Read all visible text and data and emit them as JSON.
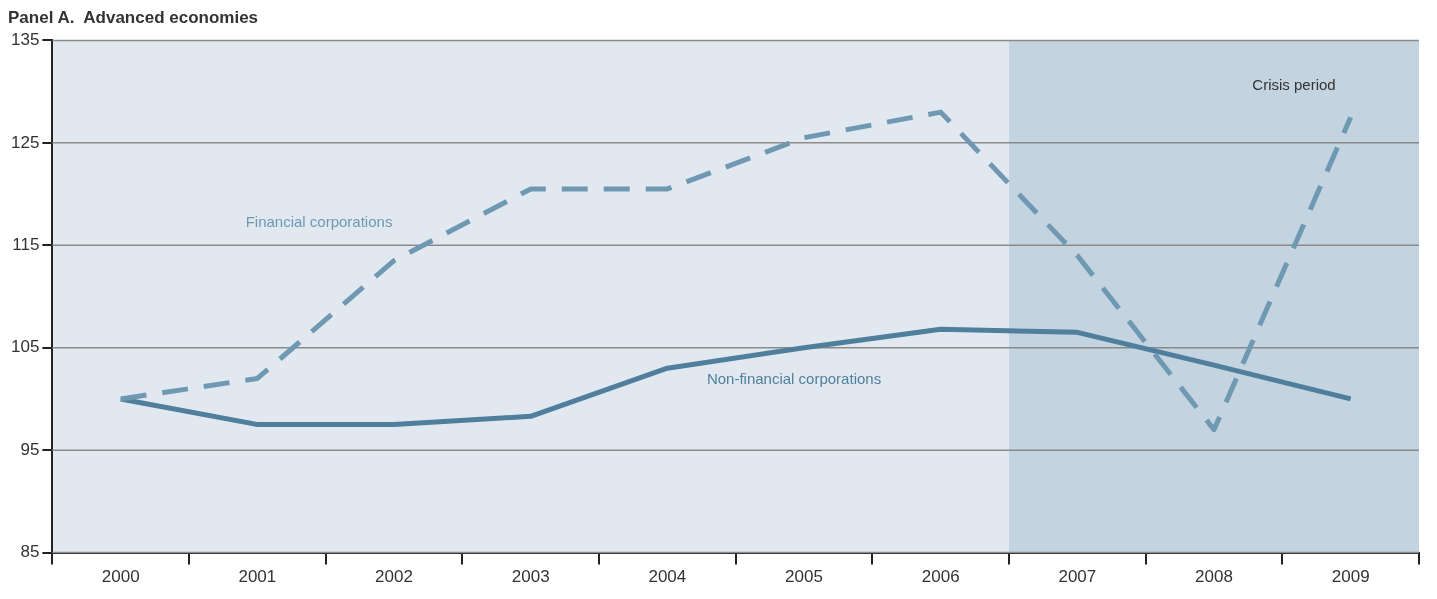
{
  "chart_data": {
    "type": "line",
    "title": "Panel A.  Advanced economies",
    "categories": [
      "2000",
      "2001",
      "2002",
      "2003",
      "2004",
      "2005",
      "2006",
      "2007",
      "2008",
      "2009"
    ],
    "series": [
      {
        "name": "Financial corporations",
        "color": "#6f98b3",
        "line_style": "dashed",
        "values": [
          100,
          102,
          113.5,
          120.5,
          120.5,
          125.5,
          128,
          114,
          97,
          127.5
        ]
      },
      {
        "name": "Non-financial corporations",
        "color": "#4f7f9c",
        "line_style": "solid",
        "values": [
          100,
          97.5,
          97.5,
          98.3,
          103,
          105,
          106.8,
          106.5,
          103.3,
          100
        ]
      }
    ],
    "ylim": [
      85,
      135
    ],
    "yticks": [
      85,
      95,
      105,
      115,
      125,
      135
    ],
    "grid": "y",
    "legend": false,
    "marker": "none",
    "bands": [
      {
        "axis": "x",
        "from": "2007",
        "to": "2009",
        "label": "Crisis period",
        "color": "#c3d3df"
      }
    ]
  }
}
